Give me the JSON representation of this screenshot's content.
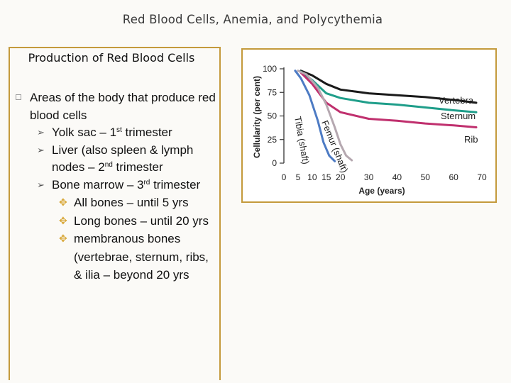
{
  "slide_title": "Red Blood Cells, Anemia, and Polycythemia",
  "panel_header": "Production of Red Blood Cells",
  "bullet": {
    "text": "Areas of the body that produce red blood cells",
    "items": [
      {
        "pre": "Yolk sac – 1",
        "sup": "st",
        "post": " trimester"
      },
      {
        "pre": "Liver (also spleen & lymph nodes – 2",
        "sup": "nd",
        "post": " trimester"
      },
      {
        "pre": "Bone marrow – 3",
        "sup": "rd",
        "post": " trimester"
      }
    ],
    "sub_items": [
      "All bones – until 5 yrs",
      "Long bones – until 20 yrs",
      "membranous bones (vertebrae, sternum, ribs, & ilia – beyond 20 yrs"
    ]
  },
  "chart_data": {
    "type": "line",
    "ylabel": "Cellularity (per cent)",
    "xlabel": "Age (years)",
    "x_ticks": [
      0,
      5,
      10,
      15,
      20,
      30,
      40,
      50,
      60,
      70
    ],
    "y_ticks": [
      0,
      25,
      50,
      75,
      100
    ],
    "xlim": [
      0,
      70
    ],
    "ylim": [
      0,
      100
    ],
    "series": [
      {
        "name": "Vertebra",
        "color": "#1a1a1a",
        "points": [
          [
            6,
            98
          ],
          [
            10,
            93
          ],
          [
            15,
            84
          ],
          [
            20,
            78
          ],
          [
            30,
            74
          ],
          [
            40,
            72
          ],
          [
            50,
            70
          ],
          [
            60,
            67
          ],
          [
            68,
            64
          ]
        ]
      },
      {
        "name": "Sternum",
        "color": "#1f9e8a",
        "points": [
          [
            6,
            97
          ],
          [
            10,
            88
          ],
          [
            15,
            74
          ],
          [
            20,
            69
          ],
          [
            30,
            64
          ],
          [
            40,
            62
          ],
          [
            50,
            59
          ],
          [
            60,
            56
          ],
          [
            68,
            54
          ]
        ]
      },
      {
        "name": "Rib",
        "color": "#c0306e",
        "points": [
          [
            6,
            96
          ],
          [
            10,
            84
          ],
          [
            15,
            64
          ],
          [
            20,
            54
          ],
          [
            30,
            47
          ],
          [
            40,
            45
          ],
          [
            50,
            42
          ],
          [
            60,
            40
          ],
          [
            68,
            38
          ]
        ]
      },
      {
        "name": "Femur (shaft)",
        "color": "#b5a8b0",
        "points": [
          [
            5,
            98
          ],
          [
            8,
            94
          ],
          [
            12,
            80
          ],
          [
            15,
            62
          ],
          [
            18,
            38
          ],
          [
            20,
            20
          ],
          [
            22,
            8
          ],
          [
            24,
            3
          ]
        ]
      },
      {
        "name": "Tibia (shaft)",
        "color": "#4d7bc4",
        "points": [
          [
            4,
            98
          ],
          [
            6,
            90
          ],
          [
            9,
            72
          ],
          [
            12,
            45
          ],
          [
            14,
            22
          ],
          [
            16,
            8
          ],
          [
            18,
            2
          ]
        ]
      }
    ]
  }
}
